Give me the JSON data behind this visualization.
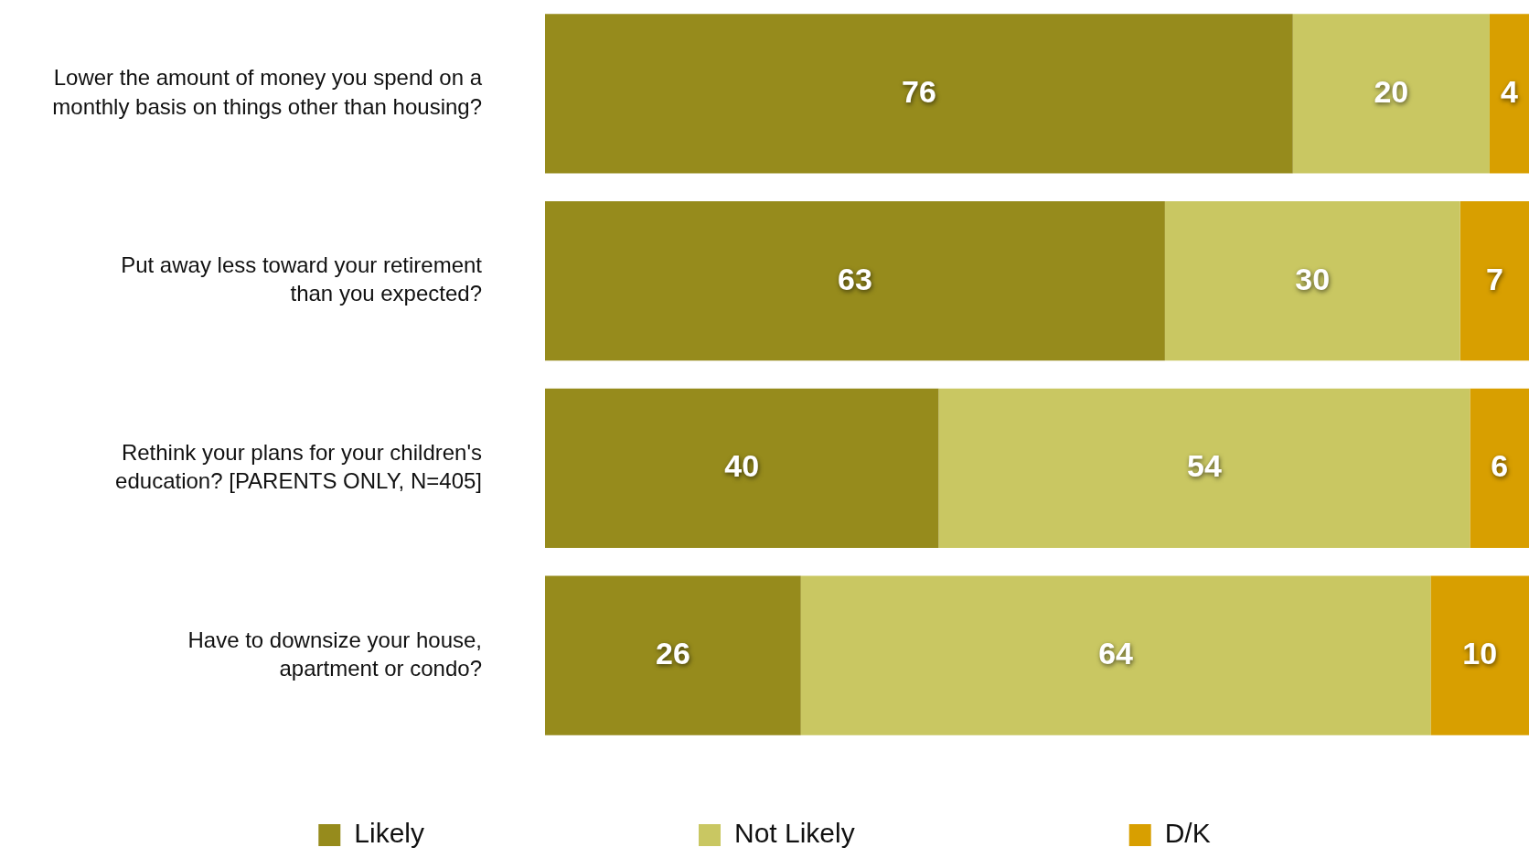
{
  "chart_data": {
    "type": "bar",
    "orientation": "horizontal",
    "stacked": true,
    "categories": [
      "Lower the amount of money you spend on a\nmonthly basis on things other than housing?",
      "Put away less toward your retirement\nthan you expected?",
      "Rethink your plans for your children's\neducation? [PARENTS ONLY, N=405]",
      "Have to downsize your house,\napartment or condo?"
    ],
    "series": [
      {
        "name": "Likely",
        "color": "#968b1c",
        "values": [
          76,
          63,
          40,
          26
        ]
      },
      {
        "name": "Not Likely",
        "color": "#c9c762",
        "values": [
          20,
          30,
          54,
          64
        ]
      },
      {
        "name": "D/K",
        "color": "#d89f00",
        "values": [
          4,
          7,
          6,
          10
        ]
      }
    ],
    "xlim": [
      0,
      100
    ],
    "tick_labels": "y",
    "data_labels": true,
    "legend": "bottom"
  }
}
